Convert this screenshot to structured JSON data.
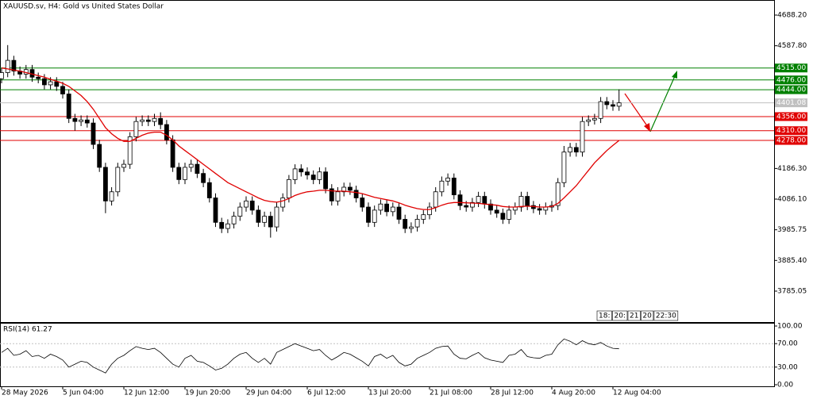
{
  "chart_data": [
    {
      "type": "candlestick",
      "title": "XAUUSD.sv, H4:  Gold vs United States Dollar",
      "categories": [
        "28 May 2026",
        null,
        null,
        null,
        null,
        null,
        null,
        null,
        null,
        null,
        "5 Jun 04:00",
        null,
        null,
        null,
        null,
        null,
        null,
        null,
        null,
        null,
        "12 Jun 12:00",
        null,
        null,
        null,
        null,
        null,
        null,
        null,
        null,
        null,
        "19 Jun 20:00",
        null,
        null,
        null,
        null,
        null,
        null,
        null,
        null,
        null,
        "29 Jun 04:00",
        null,
        null,
        null,
        null,
        null,
        null,
        null,
        null,
        null,
        "6 Jul 12:00",
        null,
        null,
        null,
        null,
        null,
        null,
        null,
        null,
        null,
        "13 Jul 20:00",
        null,
        null,
        null,
        null,
        null,
        null,
        null,
        null,
        null,
        "21 Jul 08:00",
        null,
        null,
        null,
        null,
        null,
        null,
        null,
        null,
        null,
        "28 Jul 12:00",
        null,
        null,
        null,
        null,
        null,
        null,
        null,
        null,
        null,
        "4 Aug 20:00",
        null,
        null,
        null,
        null,
        null,
        null,
        null,
        null,
        null,
        "12 Aug 04:00",
        null
      ],
      "open": [
        4480,
        4500,
        4540,
        4505,
        4495,
        4510,
        4485,
        4480,
        4460,
        4470,
        4455,
        4430,
        4350,
        4340,
        4345,
        4335,
        4265,
        4190,
        4080,
        4110,
        4190,
        4200,
        4290,
        4340,
        4345,
        4340,
        4350,
        4330,
        4280,
        4190,
        4150,
        4190,
        4200,
        4170,
        4140,
        4090,
        4010,
        3990,
        4005,
        4030,
        4060,
        4080,
        4050,
        4010,
        4030,
        3995,
        4060,
        4090,
        4150,
        4185,
        4175,
        4165,
        4150,
        4175,
        4120,
        4080,
        4110,
        4125,
        4115,
        4090,
        4060,
        4010,
        4050,
        4070,
        4045,
        4060,
        4020,
        3990,
        3995,
        4020,
        4035,
        4060,
        4110,
        4145,
        4155,
        4100,
        4065,
        4060,
        4075,
        4095,
        4070,
        4050,
        4040,
        4020,
        4050,
        4060,
        4095,
        4065,
        4055,
        4050,
        4060,
        4065,
        4140,
        4240,
        4255,
        4240,
        4340,
        4345,
        4350,
        4405,
        4395,
        4390
      ],
      "high": [
        4515,
        4590,
        4555,
        4520,
        4525,
        4525,
        4500,
        4495,
        4485,
        4485,
        4470,
        4445,
        4365,
        4360,
        4360,
        4350,
        4280,
        4205,
        4125,
        4205,
        4215,
        4305,
        4355,
        4360,
        4360,
        4365,
        4370,
        4345,
        4295,
        4205,
        4205,
        4215,
        4215,
        4185,
        4155,
        4105,
        4025,
        4020,
        4045,
        4075,
        4095,
        4095,
        4065,
        4045,
        4045,
        4075,
        4105,
        4165,
        4200,
        4200,
        4190,
        4180,
        4190,
        4190,
        4135,
        4125,
        4140,
        4140,
        4130,
        4105,
        4075,
        4065,
        4085,
        4085,
        4075,
        4075,
        4035,
        4010,
        4035,
        4050,
        4075,
        4125,
        4160,
        4170,
        4170,
        4115,
        4080,
        4090,
        4110,
        4110,
        4085,
        4065,
        4055,
        4065,
        4075,
        4110,
        4110,
        4080,
        4070,
        4075,
        4080,
        4155,
        4260,
        4270,
        4270,
        4355,
        4360,
        4365,
        4420,
        4420,
        4410,
        4445
      ],
      "low": [
        4465,
        4485,
        4490,
        4480,
        4480,
        4470,
        4465,
        4445,
        4445,
        4440,
        4415,
        4335,
        4310,
        4325,
        4320,
        4250,
        4175,
        4040,
        4065,
        4095,
        4175,
        4185,
        4275,
        4325,
        4325,
        4325,
        4315,
        4265,
        4175,
        4135,
        4135,
        4175,
        4155,
        4125,
        4075,
        3995,
        3975,
        3975,
        3990,
        4015,
        4045,
        4035,
        3995,
        3995,
        3960,
        3980,
        4045,
        4075,
        4135,
        4160,
        4150,
        4135,
        4135,
        4105,
        4065,
        4065,
        4095,
        4100,
        4075,
        4045,
        3995,
        3995,
        4035,
        4030,
        4030,
        4005,
        3975,
        3975,
        3980,
        4005,
        4020,
        4045,
        4095,
        4130,
        4085,
        4050,
        4045,
        4045,
        4060,
        4055,
        4035,
        4025,
        4005,
        4005,
        4035,
        4045,
        4050,
        4040,
        4035,
        4035,
        4045,
        4050,
        4125,
        4225,
        4225,
        4225,
        4325,
        4330,
        4335,
        4380,
        4375,
        4375
      ],
      "close": [
        4500,
        4540,
        4505,
        4495,
        4510,
        4485,
        4480,
        4460,
        4470,
        4455,
        4430,
        4350,
        4340,
        4345,
        4335,
        4265,
        4190,
        4080,
        4110,
        4190,
        4200,
        4290,
        4340,
        4345,
        4340,
        4350,
        4330,
        4280,
        4190,
        4150,
        4190,
        4200,
        4170,
        4140,
        4090,
        4010,
        3990,
        4005,
        4030,
        4060,
        4080,
        4050,
        4010,
        4030,
        3995,
        4060,
        4090,
        4150,
        4185,
        4175,
        4165,
        4150,
        4175,
        4120,
        4080,
        4110,
        4125,
        4115,
        4090,
        4060,
        4010,
        4050,
        4070,
        4045,
        4060,
        4020,
        3990,
        3995,
        4020,
        4035,
        4060,
        4110,
        4145,
        4155,
        4100,
        4065,
        4060,
        4075,
        4095,
        4070,
        4050,
        4040,
        4020,
        4050,
        4060,
        4095,
        4065,
        4055,
        4050,
        4060,
        4065,
        4140,
        4240,
        4255,
        4240,
        4340,
        4345,
        4350,
        4405,
        4395,
        4390,
        4401
      ],
      "ma": {
        "color": "#e00000",
        "values": [
          4515,
          4512,
          4508,
          4505,
          4500,
          4495,
          4490,
          4485,
          4478,
          4472,
          4465,
          4455,
          4440,
          4425,
          4405,
          4380,
          4350,
          4320,
          4300,
          4285,
          4275,
          4275,
          4285,
          4295,
          4302,
          4305,
          4305,
          4295,
          4280,
          4260,
          4245,
          4230,
          4215,
          4200,
          4185,
          4170,
          4155,
          4140,
          4130,
          4120,
          4110,
          4100,
          4090,
          4082,
          4078,
          4076,
          4080,
          4088,
          4098,
          4105,
          4110,
          4112,
          4115,
          4115,
          4113,
          4112,
          4112,
          4110,
          4108,
          4104,
          4098,
          4092,
          4088,
          4084,
          4080,
          4074,
          4066,
          4060,
          4055,
          4052,
          4052,
          4058,
          4066,
          4072,
          4075,
          4075,
          4074,
          4073,
          4072,
          4070,
          4068,
          4066,
          4062,
          4060,
          4060,
          4062,
          4063,
          4062,
          4060,
          4060,
          4062,
          4072,
          4090,
          4110,
          4130,
          4155,
          4180,
          4205,
          4225,
          4245,
          4262,
          4278
        ]
      },
      "ylim": [
        3686.4,
        4737.5
      ],
      "yticks": [
        {
          "value": 4688.2,
          "label": "4688.20"
        },
        {
          "value": 4587.8,
          "label": "4587.80"
        },
        {
          "value": 4186.3,
          "label": "4186.30"
        },
        {
          "value": 4086.1,
          "label": "4086.10"
        },
        {
          "value": 3985.75,
          "label": "3985.75"
        },
        {
          "value": 3885.4,
          "label": "3885.40"
        },
        {
          "value": 3785.05,
          "label": "3785.05"
        }
      ],
      "levels": [
        {
          "value": 4515,
          "label": "4515.00",
          "color": "#008000"
        },
        {
          "value": 4476,
          "label": "4476.00",
          "color": "#008000"
        },
        {
          "value": 4444,
          "label": "4444.00",
          "color": "#008000"
        },
        {
          "value": 4356,
          "label": "4356.00",
          "color": "#e00000"
        },
        {
          "value": 4310,
          "label": "4310.00",
          "color": "#e00000"
        },
        {
          "value": 4278,
          "label": "4278.00",
          "color": "#e00000"
        }
      ],
      "last_price": {
        "value": 4401.08,
        "label": "4401.08"
      },
      "time_markers": [
        "18:",
        "20:",
        "21",
        "20",
        "22:30"
      ]
    },
    {
      "type": "line",
      "title": "RSI(14) 61.27",
      "values": [
        55,
        62,
        50,
        52,
        58,
        48,
        50,
        45,
        52,
        48,
        42,
        30,
        35,
        40,
        38,
        30,
        25,
        20,
        35,
        45,
        50,
        58,
        65,
        62,
        60,
        62,
        55,
        45,
        35,
        30,
        45,
        50,
        40,
        38,
        32,
        25,
        28,
        35,
        45,
        52,
        55,
        45,
        38,
        45,
        35,
        55,
        60,
        65,
        70,
        66,
        62,
        58,
        60,
        50,
        42,
        48,
        55,
        52,
        46,
        40,
        32,
        48,
        52,
        45,
        50,
        38,
        32,
        35,
        45,
        50,
        55,
        62,
        65,
        66,
        52,
        45,
        44,
        50,
        55,
        46,
        42,
        40,
        38,
        50,
        52,
        60,
        48,
        46,
        45,
        50,
        52,
        68,
        78,
        74,
        68,
        75,
        70,
        68,
        72,
        66,
        62,
        61.27
      ],
      "color": "#000000",
      "ylim": [
        0,
        100
      ],
      "yticks": [
        {
          "value": 100,
          "label": "100.00"
        },
        {
          "value": 70,
          "label": "70.00"
        },
        {
          "value": 30,
          "label": "30.00"
        },
        {
          "value": 0,
          "label": "0.00"
        }
      ],
      "dashed_levels": [
        70,
        30
      ]
    }
  ]
}
